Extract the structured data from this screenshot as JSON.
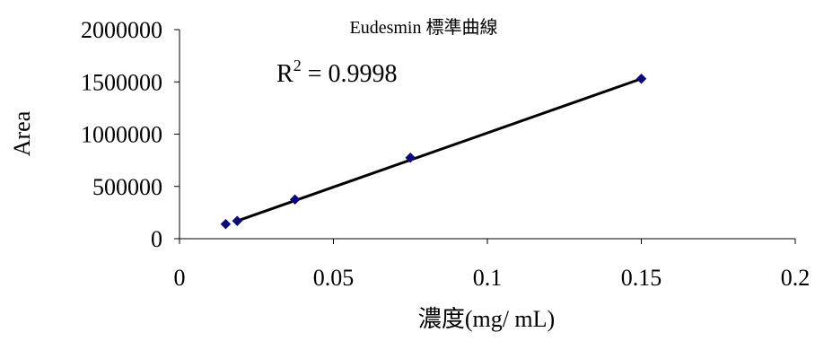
{
  "chart_data": {
    "type": "scatter",
    "title": "Eudesmin 標準曲線",
    "xlabel": "濃度(mg/ mL)",
    "ylabel": "Area",
    "xlim": [
      0,
      0.2
    ],
    "ylim": [
      0,
      2000000
    ],
    "x_ticks": [
      "0",
      "0.05",
      "0.1",
      "0.15",
      "0.2"
    ],
    "y_ticks": [
      "0",
      "500000",
      "1000000",
      "1500000",
      "2000000"
    ],
    "grid": false,
    "legend": "none",
    "annotation": {
      "base": "R",
      "sup": "2",
      "rest": " = 0.9998"
    },
    "series": [
      {
        "x": [
          0.015,
          0.01875,
          0.0375,
          0.075,
          0.15
        ],
        "y": [
          140000,
          170000,
          375000,
          775000,
          1530000
        ],
        "marker": "diamond",
        "color": "#0a0a7a"
      }
    ],
    "trendline": {
      "x": [
        0.01875,
        0.15
      ],
      "y": [
        170000,
        1530000
      ],
      "color": "#000000"
    }
  }
}
